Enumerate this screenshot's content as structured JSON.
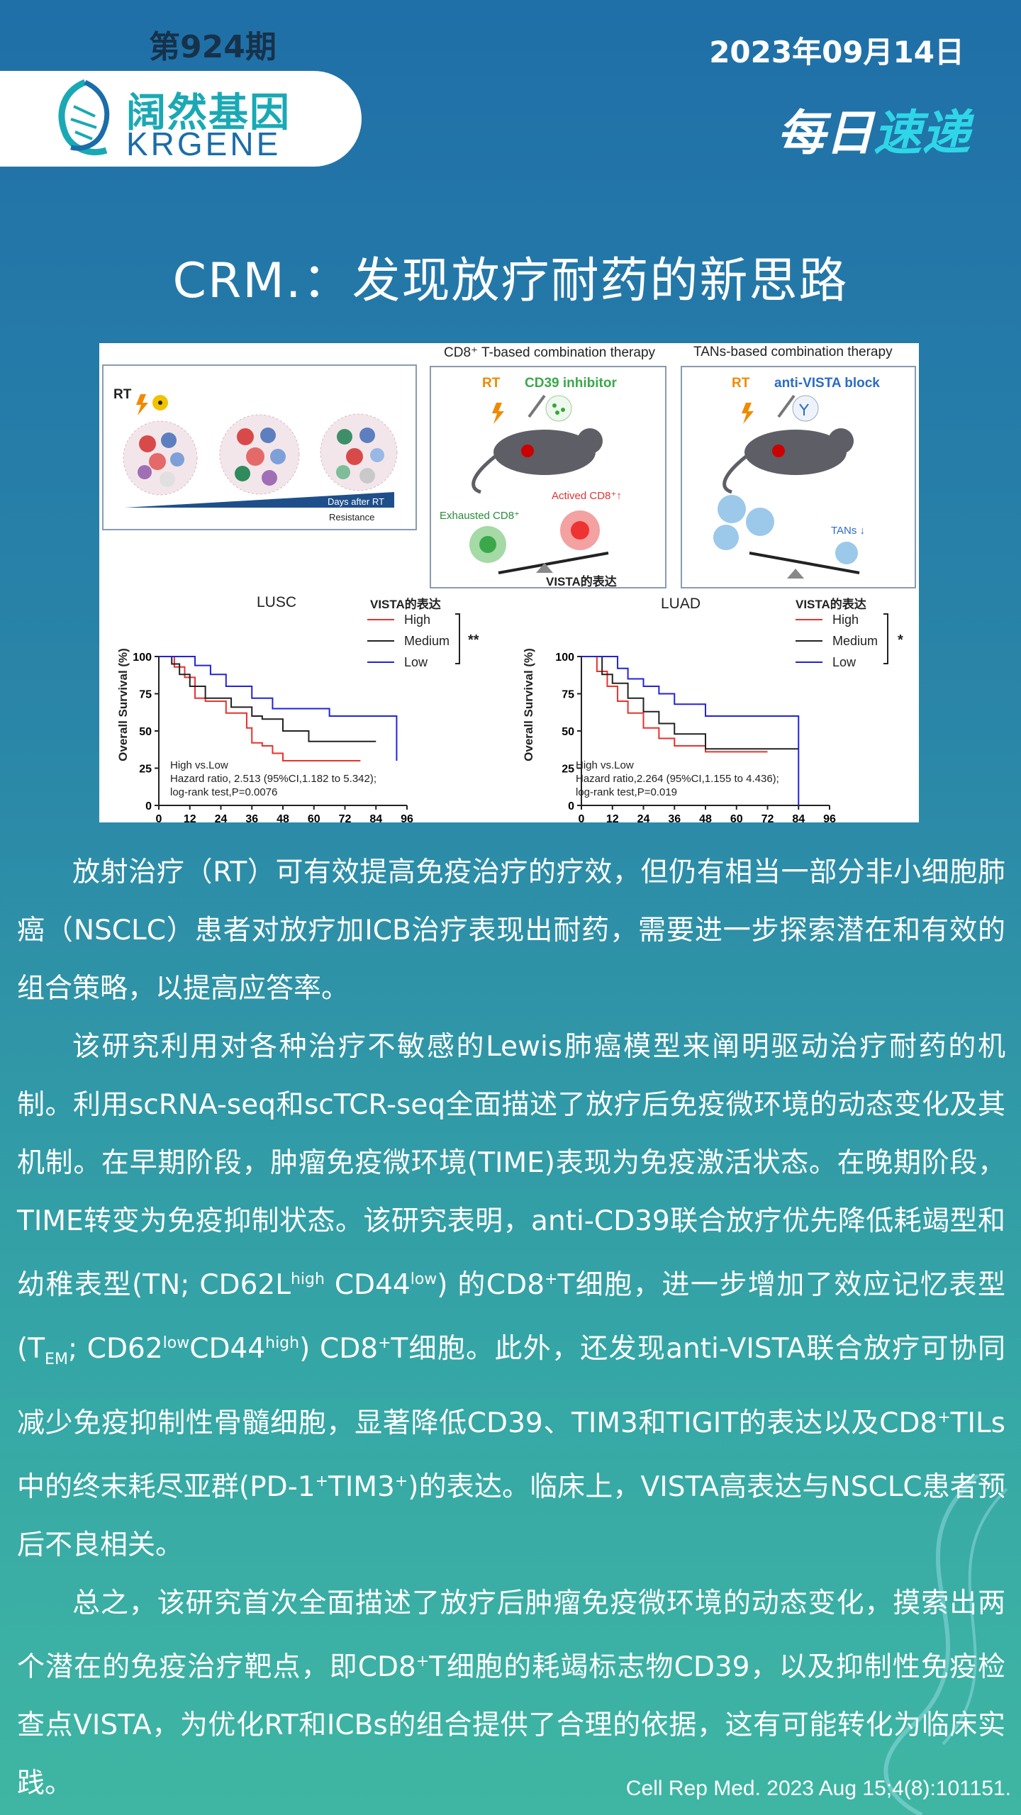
{
  "header": {
    "issue": "第924期",
    "date": "2023年09月14日",
    "logo_cn": "阔然基因",
    "logo_en": "KRGENE",
    "express_prefix": "每日",
    "express_suffix": "速递"
  },
  "title": "CRM.：发现放疗耐药的新思路",
  "figure": {
    "rt_label": "RT",
    "days_label": "Days after RT",
    "resistance_label": "Resistance",
    "cd8_panel_title": "CD8⁺ T-based combination therapy",
    "cd8_rt": "RT",
    "cd8_drug": "CD39 inhibitor",
    "exhausted": "Exhausted  CD8⁺",
    "activated": "Actived CD8⁺↑",
    "vista_label": "VISTA的表达",
    "tans_panel_title": "TANs-based combination therapy",
    "tans_rt": "RT",
    "tans_drug": "anti-VISTA block",
    "tans_label": "TANs ↓",
    "lusc": {
      "title": "LUSC",
      "legend_title": "VISTA的表达",
      "legend": [
        "High",
        "Medium",
        "Low"
      ],
      "sig": "**",
      "ylabel": "Overall Survival (%)",
      "stats": [
        "High vs.Low",
        "Hazard ratio, 2.513 (95%CI,1.182 to 5.342);",
        "log-rank test,P=0.0076"
      ],
      "yticks": [
        "100",
        "75",
        "50",
        "25",
        "0"
      ],
      "xticks": [
        "0",
        "12",
        "24",
        "36",
        "48",
        "60",
        "72",
        "84",
        "96"
      ]
    },
    "luad": {
      "title": "LUAD",
      "legend_title": "VISTA的表达",
      "legend": [
        "High",
        "Medium",
        "Low"
      ],
      "sig": "*",
      "ylabel": "Overall Survival (%)",
      "stats": [
        "High vs.Low",
        "Hazard ratio,2.264 (95%CI,1.155 to 4.436);",
        "log-rank test,P=0.019"
      ],
      "yticks": [
        "100",
        "75",
        "50",
        "25",
        "0"
      ],
      "xticks": [
        "0",
        "12",
        "24",
        "36",
        "48",
        "60",
        "72",
        "84",
        "96"
      ]
    }
  },
  "chart_data": [
    {
      "type": "line",
      "title": "LUSC",
      "ylabel": "Overall Survival (%)",
      "xlim": [
        0,
        96
      ],
      "ylim": [
        0,
        100
      ],
      "series": [
        {
          "name": "High",
          "x": [
            0,
            6,
            10,
            14,
            18,
            26,
            34,
            36,
            40,
            44,
            48,
            78
          ],
          "y": [
            100,
            93,
            86,
            72,
            70,
            62,
            52,
            42,
            40,
            35,
            30,
            30
          ]
        },
        {
          "name": "Medium",
          "x": [
            0,
            5,
            8,
            12,
            18,
            28,
            36,
            40,
            48,
            58,
            84
          ],
          "y": [
            100,
            95,
            88,
            80,
            72,
            66,
            60,
            58,
            50,
            43,
            43
          ]
        },
        {
          "name": "Low",
          "x": [
            0,
            14,
            20,
            26,
            36,
            44,
            66,
            90,
            92
          ],
          "y": [
            100,
            94,
            88,
            80,
            72,
            65,
            60,
            60,
            30
          ]
        }
      ]
    },
    {
      "type": "line",
      "title": "LUAD",
      "ylabel": "Overall Survival (%)",
      "xlim": [
        0,
        96
      ],
      "ylim": [
        0,
        100
      ],
      "series": [
        {
          "name": "High",
          "x": [
            0,
            6,
            10,
            14,
            18,
            24,
            30,
            36,
            48,
            72
          ],
          "y": [
            100,
            90,
            80,
            70,
            62,
            52,
            45,
            40,
            36,
            36
          ]
        },
        {
          "name": "Medium",
          "x": [
            0,
            8,
            12,
            18,
            24,
            30,
            36,
            48,
            84
          ],
          "y": [
            100,
            88,
            82,
            72,
            63,
            55,
            48,
            38,
            38
          ]
        },
        {
          "name": "Low",
          "x": [
            0,
            14,
            18,
            24,
            30,
            36,
            48,
            84,
            84
          ],
          "y": [
            100,
            92,
            85,
            80,
            75,
            68,
            60,
            60,
            0
          ]
        }
      ]
    }
  ],
  "body": {
    "p1": "放射治疗（RT）可有效提高免疫治疗的疗效，但仍有相当一部分非小细胞肺癌（NSCLC）患者对放疗加ICB治疗表现出耐药，需要进一步探索潜在和有效的组合策略，以提高应答率。",
    "p2a": "该研究利用对各种治疗不敏感的Lewis肺癌模型来阐明驱动治疗耐药的机制。利用scRNA-seq和scTCR-seq全面描述了放疗后免疫微环境的动态变化及其机制。在早期阶段，肿瘤免疫微环境(TIME)表现为免疫激活状态。在晚期阶段，TIME转变为免疫抑制状态。该研究表明，anti-CD39联合放疗优先降低耗竭型和幼稚表型(TN; CD62L",
    "p2_high1": "high",
    "p2b": " CD44",
    "p2_low1": "low",
    "p2c": ") 的CD8",
    "p2_plus1": "+",
    "p2d": "T细胞，进一步增加了效应记忆表型(T",
    "p2_em": "EM",
    "p2e": "; CD62",
    "p2_low2": "low",
    "p2f": "CD44",
    "p2_high2": "high",
    "p2g": ") CD8",
    "p2_plus2": "+",
    "p2h": "T细胞。此外，还发现anti-VISTA联合放疗可协同减少免疫抑制性骨髓细胞，显著降低CD39、TIM3和TIGIT的表达以及CD8",
    "p2_plus3": "+",
    "p2i": "TILs中的终末耗尽亚群(PD-1",
    "p2_plus4": "+",
    "p2j": "TIM3",
    "p2_plus5": "+",
    "p2k": ")的表达。临床上，VISTA高表达与NSCLC患者预后不良相关。",
    "p3a": "总之，该研究首次全面描述了放疗后肿瘤免疫微环境的动态变化，摸索出两个潜在的免疫治疗靶点，即CD8",
    "p3_plus": "+",
    "p3b": "T细胞的耗竭标志物CD39，以及抑制性免疫检查点VISTA，为优化RT和ICBs的组合提供了合理的依据，这有可能转化为临床实践。"
  },
  "citation": "Cell Rep Med. 2023 Aug 15;4(8):101151.",
  "colors": {
    "high": "#e8322b",
    "medium": "#222222",
    "low": "#2222dd",
    "express_accent": "#2fd6e8"
  }
}
